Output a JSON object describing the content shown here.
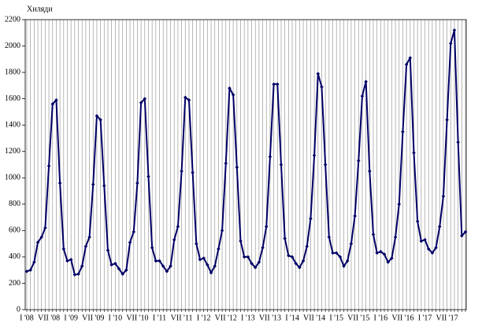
{
  "chart_data": {
    "type": "line",
    "y_axis_label": "Хиляди",
    "categories": [
      "I '08",
      null,
      null,
      null,
      null,
      null,
      "VII '08",
      null,
      null,
      null,
      null,
      null,
      "I '09",
      null,
      null,
      null,
      null,
      null,
      "VII '09",
      null,
      null,
      null,
      null,
      null,
      "I '10",
      null,
      null,
      null,
      null,
      null,
      "VII '10",
      null,
      null,
      null,
      null,
      null,
      "I '11",
      null,
      null,
      null,
      null,
      null,
      "VII '11",
      null,
      null,
      null,
      null,
      null,
      "I '12",
      null,
      null,
      null,
      null,
      null,
      "VII '12",
      null,
      null,
      null,
      null,
      null,
      "I '13",
      null,
      null,
      null,
      null,
      null,
      "VII '13",
      null,
      null,
      null,
      null,
      null,
      "I '14",
      null,
      null,
      null,
      null,
      null,
      "VII '14",
      null,
      null,
      null,
      null,
      null,
      "I '15",
      null,
      null,
      null,
      null,
      null,
      "VII '15",
      null,
      null,
      null,
      null,
      null,
      "I '16",
      null,
      null,
      null,
      null,
      null,
      "VII '16",
      null,
      null,
      null,
      null,
      null,
      "I '17",
      null,
      null,
      null,
      null,
      null,
      "VII '17",
      null,
      null,
      null,
      null,
      null
    ],
    "values": [
      290,
      300,
      360,
      510,
      550,
      620,
      1090,
      1560,
      1590,
      960,
      460,
      370,
      380,
      265,
      270,
      330,
      480,
      550,
      950,
      1470,
      1440,
      940,
      450,
      340,
      350,
      310,
      270,
      300,
      510,
      590,
      960,
      1570,
      1600,
      1010,
      470,
      370,
      370,
      330,
      290,
      330,
      530,
      630,
      1050,
      1610,
      1590,
      1040,
      500,
      380,
      390,
      340,
      280,
      330,
      460,
      600,
      1110,
      1680,
      1630,
      1080,
      520,
      400,
      400,
      350,
      320,
      360,
      470,
      630,
      1160,
      1710,
      1710,
      1100,
      540,
      410,
      400,
      350,
      320,
      370,
      480,
      690,
      1170,
      1790,
      1690,
      1100,
      550,
      430,
      430,
      400,
      330,
      370,
      500,
      710,
      1130,
      1620,
      1730,
      1050,
      570,
      430,
      440,
      420,
      360,
      390,
      550,
      800,
      1350,
      1860,
      1910,
      1190,
      670,
      520,
      530,
      460,
      430,
      470,
      630,
      860,
      1440,
      2020,
      2120,
      1270,
      560,
      590
    ],
    "color": "#000066",
    "ylim": [
      0,
      2200
    ],
    "yticks": [
      0,
      200,
      400,
      600,
      800,
      1000,
      1200,
      1400,
      1600,
      1800,
      2000,
      2200
    ],
    "grid": true
  }
}
